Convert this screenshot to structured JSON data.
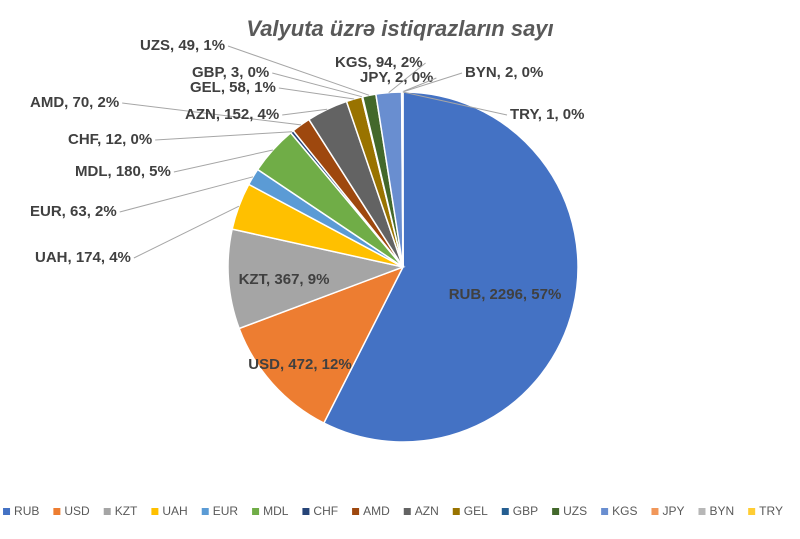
{
  "chart_data": {
    "type": "pie",
    "title": "Valyuta üzrə istiqrazların sayı",
    "categories": [
      "RUB",
      "USD",
      "KZT",
      "UAH",
      "EUR",
      "MDL",
      "CHF",
      "AMD",
      "AZN",
      "GEL",
      "GBP",
      "UZS",
      "KGS",
      "JPY",
      "BYN",
      "TRY"
    ],
    "values": [
      2296,
      472,
      367,
      174,
      63,
      180,
      12,
      70,
      152,
      58,
      3,
      49,
      94,
      2,
      2,
      1
    ],
    "value_labels": [
      "RUB, 2296, 57%",
      "USD, 472, 12%",
      "KZT, 367, 9%",
      "UAH, 174, 4%",
      "EUR, 63, 2%",
      "MDL, 180, 5%",
      "CHF, 12, 0%",
      "AMD, 70, 2%",
      "AZN, 152, 4%",
      "GEL, 58, 1%",
      "GBP, 3, 0%",
      "UZS, 49, 1%",
      "KGS, 94, 2%",
      "JPY, 2, 0%",
      "BYN, 2, 0%",
      "TRY, 1, 0%"
    ],
    "colors": [
      "#4472c4",
      "#ed7d31",
      "#a5a5a5",
      "#ffc000",
      "#5b9bd5",
      "#70ad47",
      "#264478",
      "#9e480e",
      "#636363",
      "#997300",
      "#255e91",
      "#43682b",
      "#698ed0",
      "#f1975a",
      "#b7b7b7",
      "#ffcd33"
    ],
    "legend": "bottom"
  }
}
